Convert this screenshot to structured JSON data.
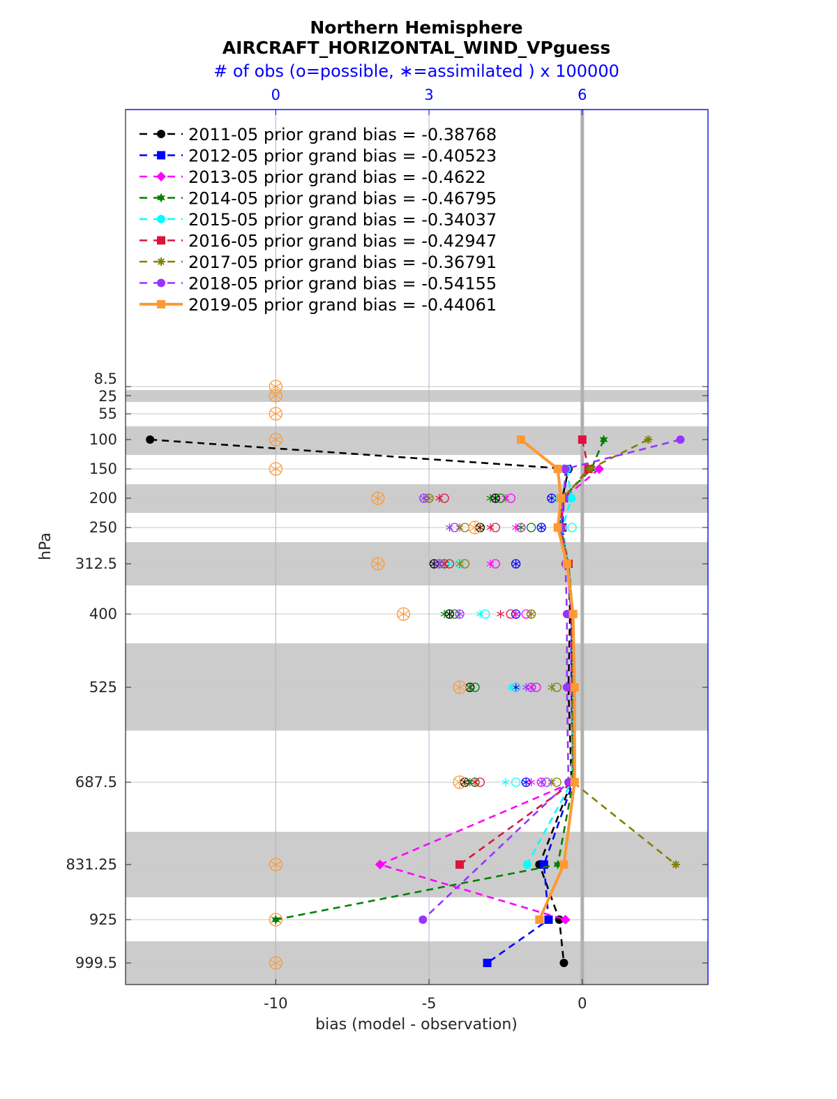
{
  "chart_data": {
    "type": "line",
    "title": "Northern Hemisphere",
    "subtitle": "AIRCRAFT_HORIZONTAL_WIND_VPguess",
    "top_axis_title": "# of obs (o=possible, ∗=assimilated ) x 100000",
    "xlabel": "bias (model - observation)",
    "ylabel": "hPa",
    "xlim": [
      -14.9,
      4.1
    ],
    "x_ticks": [
      "-10",
      "-5",
      "0"
    ],
    "x_tick_values": [
      -10,
      -5,
      0
    ],
    "top_ticks": [
      "0",
      "3",
      "6"
    ],
    "top_tick_values": [
      0,
      3,
      6
    ],
    "y_ticks": [
      "8.5",
      "25",
      "55",
      "100",
      "150",
      "200",
      "250",
      "312.5",
      "400",
      "525",
      "687.5",
      "831.25",
      "925",
      "999.5"
    ],
    "y_tick_values": [
      8.5,
      25,
      55,
      100,
      150,
      200,
      250,
      312.5,
      400,
      525,
      687.5,
      831.25,
      925,
      999.5
    ],
    "y_reversed": true,
    "grid": true,
    "legend_position": "top-left",
    "levels": [
      8.5,
      25,
      55,
      100,
      150,
      200,
      250,
      312.5,
      400,
      525,
      687.5,
      831.25,
      925,
      999.5
    ],
    "series": [
      {
        "name": "2011-05 prior grand bias = -0.38768",
        "color": "#000000",
        "marker": "circle",
        "dashed": true,
        "values": [
          null,
          null,
          null,
          -14.1,
          -0.45,
          -0.65,
          -0.75,
          -0.45,
          -0.4,
          -0.45,
          -0.35,
          -1.4,
          -0.75,
          -0.6
        ],
        "obs_possible": [
          null,
          null,
          null,
          null,
          null,
          4.3,
          4.0,
          3.1,
          3.4,
          3.8,
          3.7,
          null,
          null,
          null
        ],
        "obs_assimilated": [
          null,
          null,
          null,
          null,
          null,
          4.3,
          4.0,
          3.1,
          3.4,
          3.8,
          3.7,
          null,
          null,
          null
        ]
      },
      {
        "name": "2012-05 prior grand bias = -0.40523",
        "color": "#0000ff",
        "marker": "square",
        "dashed": true,
        "values": [
          null,
          null,
          null,
          null,
          -0.5,
          -0.6,
          -0.65,
          -0.5,
          -0.35,
          -0.35,
          -0.3,
          -1.25,
          -1.1,
          -3.1
        ],
        "obs_possible": [
          null,
          null,
          null,
          null,
          null,
          5.4,
          5.2,
          4.7,
          4.7,
          4.7,
          4.9,
          null,
          null,
          null
        ],
        "obs_assimilated": [
          null,
          null,
          null,
          null,
          null,
          5.4,
          5.2,
          4.7,
          4.7,
          4.7,
          4.9,
          null,
          null,
          null
        ]
      },
      {
        "name": "2013-05 prior grand bias = -0.4622",
        "color": "#ff00ff",
        "marker": "diamond",
        "dashed": true,
        "values": [
          null,
          null,
          null,
          null,
          0.55,
          -0.6,
          -0.7,
          -0.5,
          -0.35,
          -0.35,
          -0.3,
          -6.6,
          -0.55,
          null
        ],
        "obs_possible": [
          null,
          null,
          null,
          null,
          null,
          4.6,
          4.8,
          4.3,
          4.9,
          5.1,
          5.2,
          null,
          null,
          null
        ],
        "obs_assimilated": [
          null,
          null,
          null,
          null,
          null,
          4.5,
          4.7,
          4.2,
          4.7,
          5.0,
          5.0,
          null,
          null,
          null
        ]
      },
      {
        "name": "2014-05 prior grand bias = -0.46795",
        "color": "#008000",
        "marker": "hexagram",
        "dashed": true,
        "values": [
          null,
          null,
          null,
          0.7,
          0.3,
          -0.65,
          -0.75,
          -0.45,
          -0.3,
          -0.3,
          -0.3,
          -0.8,
          -10.0,
          null
        ],
        "obs_possible": [
          null,
          null,
          null,
          null,
          null,
          4.4,
          5.0,
          3.3,
          3.5,
          3.9,
          3.9,
          null,
          null,
          null
        ],
        "obs_assimilated": [
          null,
          null,
          null,
          null,
          null,
          4.2,
          4.8,
          3.2,
          3.3,
          3.8,
          3.8,
          null,
          null,
          null
        ]
      },
      {
        "name": "2015-05 prior grand bias = -0.34037",
        "color": "#00ffff",
        "marker": "circle",
        "dashed": true,
        "values": [
          null,
          null,
          null,
          null,
          -0.5,
          -0.35,
          -0.65,
          -0.45,
          -0.35,
          -0.3,
          -0.35,
          -1.8,
          null,
          null
        ],
        "obs_possible": [
          null,
          null,
          null,
          null,
          null,
          5.6,
          5.8,
          3.6,
          4.1,
          4.7,
          4.7,
          null,
          null,
          null
        ],
        "obs_assimilated": [
          null,
          null,
          null,
          null,
          null,
          5.5,
          5.6,
          3.4,
          4.0,
          4.6,
          4.5,
          null,
          null,
          null
        ]
      },
      {
        "name": "2016-05 prior grand bias = -0.42947",
        "color": "#dc143c",
        "marker": "square",
        "dashed": true,
        "values": [
          null,
          null,
          null,
          0.0,
          0.2,
          -0.6,
          -0.7,
          -0.45,
          -0.35,
          -0.3,
          -0.3,
          -4.0,
          null,
          null
        ],
        "obs_possible": [
          null,
          null,
          null,
          null,
          null,
          3.3,
          4.3,
          3.4,
          4.6,
          null,
          4.0,
          null,
          null,
          null
        ],
        "obs_assimilated": [
          null,
          null,
          null,
          null,
          null,
          3.2,
          4.2,
          3.3,
          4.4,
          null,
          3.9,
          null,
          null,
          null
        ]
      },
      {
        "name": "2017-05 prior grand bias = -0.36791",
        "color": "#808000",
        "marker": "asterisk",
        "dashed": true,
        "values": [
          null,
          null,
          null,
          2.15,
          0.25,
          -0.65,
          -0.75,
          -0.45,
          -0.3,
          -0.3,
          -0.3,
          3.05,
          null,
          null
        ],
        "obs_possible": [
          null,
          null,
          null,
          null,
          null,
          3.0,
          3.7,
          3.7,
          5.0,
          5.5,
          5.5,
          null,
          null,
          null
        ],
        "obs_assimilated": [
          null,
          null,
          null,
          null,
          null,
          3.0,
          3.6,
          3.6,
          5.0,
          5.4,
          5.4,
          null,
          null,
          null
        ]
      },
      {
        "name": "2018-05 prior grand bias = -0.54155",
        "color": "#9933ff",
        "marker": "circle",
        "dashed": true,
        "values": [
          null,
          null,
          null,
          3.2,
          -0.55,
          -0.6,
          -0.7,
          -0.55,
          -0.5,
          -0.5,
          -0.45,
          null,
          -5.2,
          null
        ],
        "obs_possible": [
          null,
          null,
          null,
          null,
          null,
          2.9,
          3.5,
          3.2,
          3.6,
          5.0,
          5.3,
          null,
          null,
          null
        ],
        "obs_assimilated": [
          null,
          null,
          null,
          null,
          null,
          2.9,
          3.4,
          3.2,
          3.6,
          4.9,
          5.2,
          null,
          null,
          null
        ]
      },
      {
        "name": "2019-05 prior grand bias = -0.44061",
        "color": "#ff9933",
        "marker": "square",
        "dashed": false,
        "values": [
          null,
          null,
          null,
          -2.0,
          -0.8,
          -0.7,
          -0.8,
          -0.5,
          -0.3,
          -0.25,
          -0.25,
          -0.6,
          -1.4,
          null
        ],
        "obs_possible": [
          0,
          0,
          0,
          0,
          0,
          2.0,
          3.9,
          2.0,
          2.5,
          3.6,
          3.6,
          0,
          0,
          0
        ],
        "obs_assimilated": [
          0,
          0,
          0,
          0,
          0,
          2.0,
          3.9,
          2.0,
          2.5,
          3.6,
          3.6,
          0,
          0,
          0
        ]
      }
    ]
  }
}
